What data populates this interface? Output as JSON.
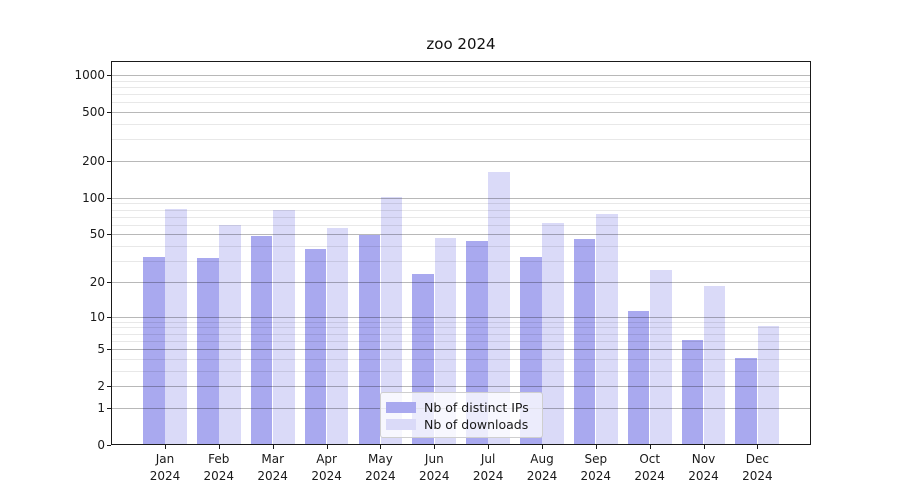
{
  "chart_data": {
    "type": "bar",
    "title": "zoo 2024",
    "categories": [
      "Jan",
      "Feb",
      "Mar",
      "Apr",
      "May",
      "Jun",
      "Jul",
      "Aug",
      "Sep",
      "Oct",
      "Nov",
      "Dec"
    ],
    "category_year": "2024",
    "series": [
      {
        "name": "Nb of distinct IPs",
        "color": "#a9a9ef",
        "values": [
          32,
          31,
          48,
          37,
          49,
          23,
          43,
          32,
          45,
          11,
          6,
          4
        ]
      },
      {
        "name": "Nb of downloads",
        "color": "#dadaf8",
        "values": [
          80,
          59,
          78,
          55,
          100,
          46,
          160,
          61,
          72,
          25,
          18,
          8
        ]
      }
    ],
    "xlabel": "",
    "ylabel": "",
    "y_scale": "log10(1+value)",
    "ylim": [
      0,
      1280
    ],
    "y_ticks": [
      0,
      1,
      2,
      5,
      10,
      20,
      50,
      100,
      200,
      500,
      1000
    ],
    "y_minor_ticks": [
      3,
      4,
      6,
      7,
      8,
      9,
      30,
      40,
      60,
      70,
      80,
      90,
      300,
      400,
      600,
      700,
      800,
      900
    ],
    "grid": true,
    "legend": {
      "position": "bottom-center",
      "items": [
        "Nb of distinct IPs",
        "Nb of downloads"
      ]
    },
    "colors": {
      "grid_major": "rgba(0,0,0,0.28)",
      "grid_minor": "rgba(0,0,0,0.09)",
      "axis": "#1a1a1a",
      "background": "#ffffff"
    }
  }
}
